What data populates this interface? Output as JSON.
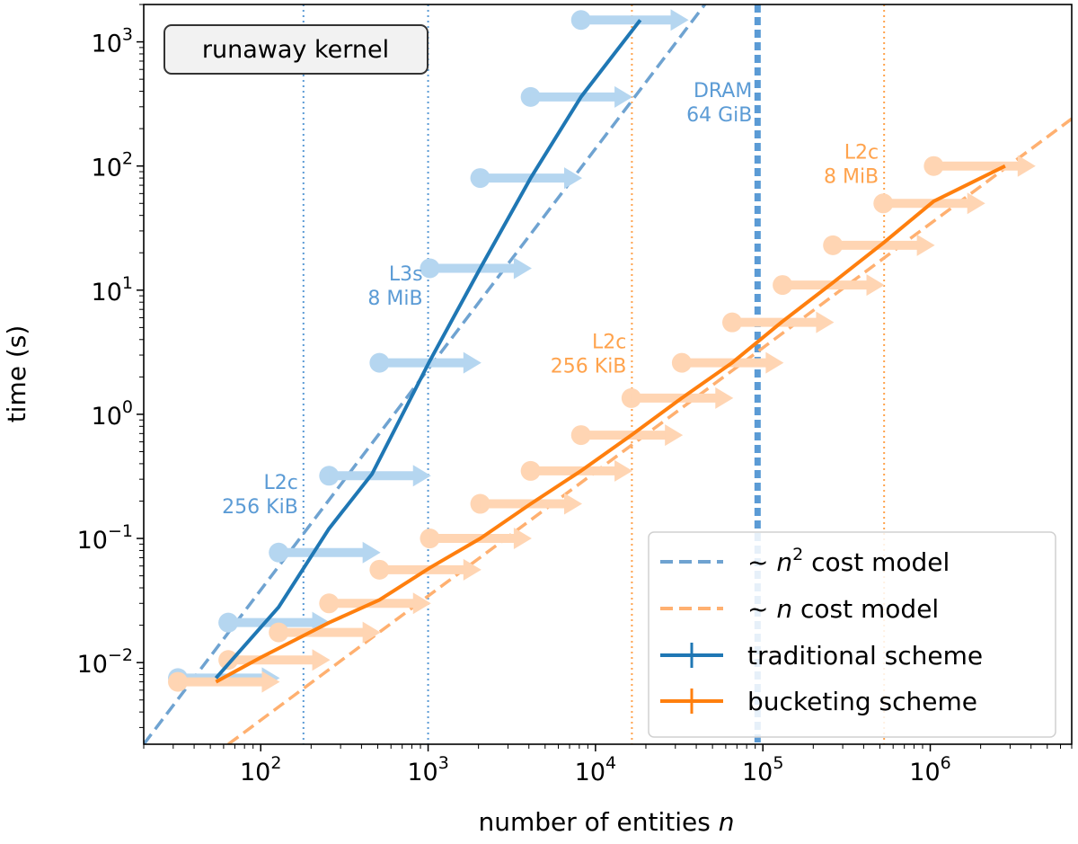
{
  "chart_data": {
    "type": "line",
    "title": "runaway kernel",
    "xlabel": "number of entities",
    "xlabel_var": "n",
    "ylabel": "time (s)",
    "xscale": "log",
    "yscale": "log",
    "xlim": [
      20,
      7000000
    ],
    "ylim": [
      0.0022,
      2000
    ],
    "x_ticks": [
      {
        "base": "10",
        "exp": "2",
        "value": 100
      },
      {
        "base": "10",
        "exp": "3",
        "value": 1000
      },
      {
        "base": "10",
        "exp": "4",
        "value": 10000
      },
      {
        "base": "10",
        "exp": "5",
        "value": 100000
      },
      {
        "base": "10",
        "exp": "6",
        "value": 1000000
      }
    ],
    "y_ticks": [
      {
        "base": "10",
        "exp": "−2",
        "value": 0.01
      },
      {
        "base": "10",
        "exp": "−1",
        "value": 0.1
      },
      {
        "base": "10",
        "exp": "0",
        "value": 1
      },
      {
        "base": "10",
        "exp": "1",
        "value": 10
      },
      {
        "base": "10",
        "exp": "2",
        "value": 100
      },
      {
        "base": "10",
        "exp": "3",
        "value": 1000
      }
    ],
    "colors": {
      "traditional": "#1f77b4",
      "traditional_light": "#b5d6f0",
      "bucketing": "#ff7f0e",
      "bucketing_light": "#ffd5b3",
      "model_n2": "#6fa3d1",
      "model_n": "#ffb070",
      "vline_blue": "#5b9bd5",
      "vline_orange": "#ffa34d"
    },
    "series": [
      {
        "name": "traditional scheme",
        "color_key": "traditional",
        "x": [
          54,
          128,
          256,
          462,
          1024,
          2048,
          4096,
          8192,
          18500
        ],
        "y": [
          0.0075,
          0.028,
          0.12,
          0.33,
          2.7,
          15,
          80,
          360,
          1500
        ]
      },
      {
        "name": "bucketing scheme",
        "color_key": "bucketing",
        "x": [
          54,
          100,
          256,
          512,
          1024,
          2048,
          4096,
          8192,
          16384,
          32768,
          65536,
          131072,
          262144,
          524288,
          1048576,
          2800000
        ],
        "y": [
          0.007,
          0.011,
          0.021,
          0.032,
          0.058,
          0.1,
          0.19,
          0.35,
          0.68,
          1.35,
          2.6,
          5.6,
          11.5,
          24,
          52,
          100
        ]
      }
    ],
    "arrows": [
      {
        "group": "traditional",
        "x_start": 32,
        "x_end": 130,
        "y": 0.0075
      },
      {
        "group": "traditional",
        "x_start": 64,
        "x_end": 260,
        "y": 0.021
      },
      {
        "group": "traditional",
        "x_start": 128,
        "x_end": 520,
        "y": 0.077
      },
      {
        "group": "traditional",
        "x_start": 256,
        "x_end": 1040,
        "y": 0.32
      },
      {
        "group": "traditional",
        "x_start": 512,
        "x_end": 2080,
        "y": 2.6
      },
      {
        "group": "traditional",
        "x_start": 1024,
        "x_end": 4160,
        "y": 15
      },
      {
        "group": "traditional",
        "x_start": 2048,
        "x_end": 8320,
        "y": 80
      },
      {
        "group": "traditional",
        "x_start": 4096,
        "x_end": 16640,
        "y": 360
      },
      {
        "group": "traditional",
        "x_start": 8192,
        "x_end": 36000,
        "y": 1500
      },
      {
        "group": "bucketing",
        "x_start": 32,
        "x_end": 130,
        "y": 0.007
      },
      {
        "group": "bucketing",
        "x_start": 64,
        "x_end": 260,
        "y": 0.0105
      },
      {
        "group": "bucketing",
        "x_start": 128,
        "x_end": 520,
        "y": 0.0175
      },
      {
        "group": "bucketing",
        "x_start": 256,
        "x_end": 1040,
        "y": 0.03
      },
      {
        "group": "bucketing",
        "x_start": 512,
        "x_end": 2080,
        "y": 0.056
      },
      {
        "group": "bucketing",
        "x_start": 1024,
        "x_end": 4160,
        "y": 0.1
      },
      {
        "group": "bucketing",
        "x_start": 2048,
        "x_end": 8320,
        "y": 0.19
      },
      {
        "group": "bucketing",
        "x_start": 4096,
        "x_end": 16640,
        "y": 0.35
      },
      {
        "group": "bucketing",
        "x_start": 8192,
        "x_end": 33280,
        "y": 0.68
      },
      {
        "group": "bucketing",
        "x_start": 16384,
        "x_end": 66560,
        "y": 1.35
      },
      {
        "group": "bucketing",
        "x_start": 32768,
        "x_end": 133120,
        "y": 2.6
      },
      {
        "group": "bucketing",
        "x_start": 65536,
        "x_end": 266240,
        "y": 5.5
      },
      {
        "group": "bucketing",
        "x_start": 131072,
        "x_end": 532480,
        "y": 11
      },
      {
        "group": "bucketing",
        "x_start": 262144,
        "x_end": 1064960,
        "y": 23
      },
      {
        "group": "bucketing",
        "x_start": 524288,
        "x_end": 2129920,
        "y": 50
      },
      {
        "group": "bucketing",
        "x_start": 1048576,
        "x_end": 4259840,
        "y": 100
      }
    ],
    "model_lines": [
      {
        "name": "~ n2 cost model",
        "color_key": "model_n2",
        "x": [
          20,
          45000
        ],
        "y": [
          0.0022,
          2000
        ]
      },
      {
        "name": "~ n cost model",
        "color_key": "model_n",
        "x": [
          64,
          7000000
        ],
        "y": [
          0.0022,
          240
        ]
      }
    ],
    "vlines": [
      {
        "x": 180,
        "color_key": "vline_blue",
        "style": "dotted",
        "label_lines": [
          "L2c",
          "256 KiB"
        ],
        "label_at_y": 0.25
      },
      {
        "x": 1000,
        "color_key": "vline_blue",
        "style": "dotted",
        "label_lines": [
          "L3s",
          "8 MiB"
        ],
        "label_at_y": 12
      },
      {
        "x": 16500,
        "color_key": "vline_orange",
        "style": "dotted",
        "label_lines": [
          "L2c",
          "256 KiB"
        ],
        "label_at_y": 3.4
      },
      {
        "x": 93000,
        "color_key": "vline_blue",
        "style": "thick-dotted",
        "label_lines": [
          "DRAM",
          "64 GiB"
        ],
        "label_at_y": 360
      },
      {
        "x": 530000,
        "color_key": "vline_orange",
        "style": "dotted",
        "label_lines": [
          "L2c",
          "8 MiB"
        ],
        "label_at_y": 115
      }
    ],
    "legend": {
      "position": "lower right",
      "entries": [
        {
          "symbol": "~",
          "var": "n",
          "sup": "2",
          "rest": "cost model",
          "style": "dashed",
          "color_key": "model_n2"
        },
        {
          "symbol": "~",
          "var": "n",
          "sup": "",
          "rest": "cost model",
          "style": "dashed",
          "color_key": "model_n"
        },
        {
          "label": "traditional scheme",
          "style": "solid",
          "color_key": "traditional"
        },
        {
          "label": "bucketing scheme",
          "style": "solid",
          "color_key": "bucketing"
        }
      ]
    }
  }
}
